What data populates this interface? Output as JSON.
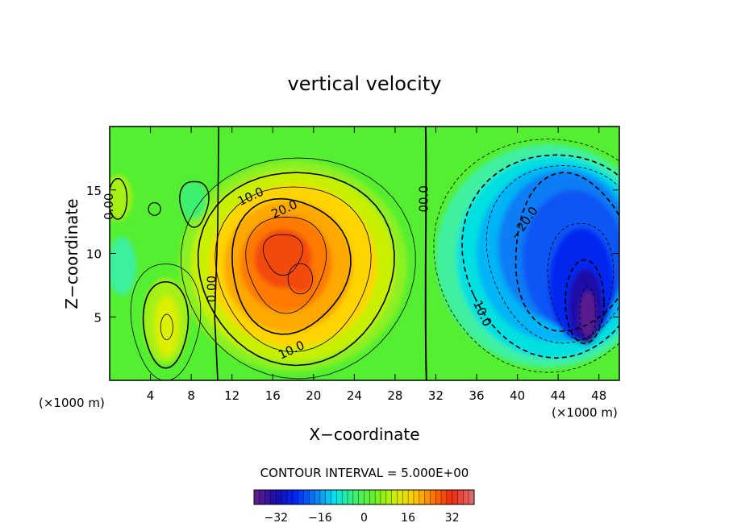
{
  "chart_data": {
    "type": "heatmap",
    "subtype": "filled-contour",
    "title": "vertical velocity",
    "xlabel": "X−coordinate",
    "ylabel": "Z−coordinate",
    "x_unit_left": "(×1000 m)",
    "x_unit_right": "(×1000 m)",
    "xlim": [
      0,
      50
    ],
    "ylim": [
      0,
      20
    ],
    "x_ticks": [
      4,
      8,
      12,
      16,
      20,
      24,
      28,
      32,
      36,
      40,
      44,
      48
    ],
    "x_tick_labels": [
      "4",
      "8",
      "12",
      "16",
      "20",
      "24",
      "28",
      "32",
      "36",
      "40",
      "44",
      "48"
    ],
    "y_ticks": [
      5,
      10,
      15
    ],
    "y_tick_labels": [
      "5",
      "10",
      "15"
    ],
    "contour_interval_text": "CONTOUR INTERVAL = 5.000E+00",
    "colorbar": {
      "min": -40,
      "max": 40,
      "ticks": [
        -32,
        -16,
        0,
        16,
        32
      ],
      "tick_labels": [
        "−32",
        "−16",
        "0",
        "16",
        "32"
      ],
      "colors": [
        "#5a1f8c",
        "#1a0ca8",
        "#0026ff",
        "#0a7cf5",
        "#00e5f0",
        "#3cf070",
        "#66f02a",
        "#c8f000",
        "#ffd000",
        "#ff7a00",
        "#f02a10",
        "#e06a6a"
      ]
    },
    "features": [
      {
        "name": "updraft-core",
        "x": 17,
        "z": 9.5,
        "peak": 33
      },
      {
        "name": "updraft-secondary",
        "x": 18.5,
        "z": 8,
        "peak": 30
      },
      {
        "name": "small-updraft",
        "x": 5.5,
        "z": 5,
        "peak": 12
      },
      {
        "name": "downdraft-core",
        "x": 46.5,
        "z": 5.5,
        "peak": -38
      },
      {
        "name": "downdraft-broad",
        "x": 44,
        "z": 11,
        "peak": -22
      }
    ],
    "contour_labels": [
      {
        "text": "10.0",
        "x": 14,
        "z": 14.2
      },
      {
        "text": "20.0",
        "x": 17.3,
        "z": 13.2
      },
      {
        "text": "10.0",
        "x": 18,
        "z": 2.1
      },
      {
        "text": "0.00",
        "x": 10.4,
        "z": 7.2
      },
      {
        "text": "0.00",
        "x": 0.3,
        "z": 13.7
      },
      {
        "text": "00.0",
        "x": 31.2,
        "z": 14.3
      },
      {
        "text": "−20.0",
        "x": 41,
        "z": 12.2
      },
      {
        "text": "−10.0",
        "x": 36,
        "z": 5.5
      }
    ]
  }
}
